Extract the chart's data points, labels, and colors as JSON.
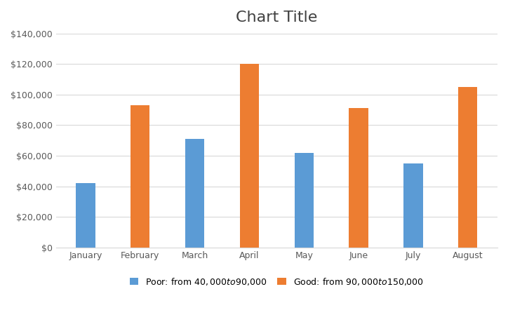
{
  "title": "Chart Title",
  "categories": [
    "January",
    "February",
    "March",
    "April",
    "May",
    "June",
    "July",
    "August"
  ],
  "values": [
    42000,
    93000,
    71000,
    120000,
    62000,
    91000,
    55000,
    105000
  ],
  "colors": [
    "#5B9BD5",
    "#ED7D31",
    "#5B9BD5",
    "#ED7D31",
    "#5B9BD5",
    "#ED7D31",
    "#5B9BD5",
    "#ED7D31"
  ],
  "legend_labels": [
    "Poor: from $40,000 to $90,000",
    "Good: from $90,000 to $150,000"
  ],
  "legend_colors": [
    "#5B9BD5",
    "#ED7D31"
  ],
  "ylim": [
    0,
    140000
  ],
  "yticks": [
    0,
    20000,
    40000,
    60000,
    80000,
    100000,
    120000,
    140000
  ],
  "title_fontsize": 16,
  "tick_fontsize": 9,
  "legend_fontsize": 9,
  "background_color": "#FFFFFF",
  "grid_color": "#D9D9D9",
  "bar_width": 0.35
}
